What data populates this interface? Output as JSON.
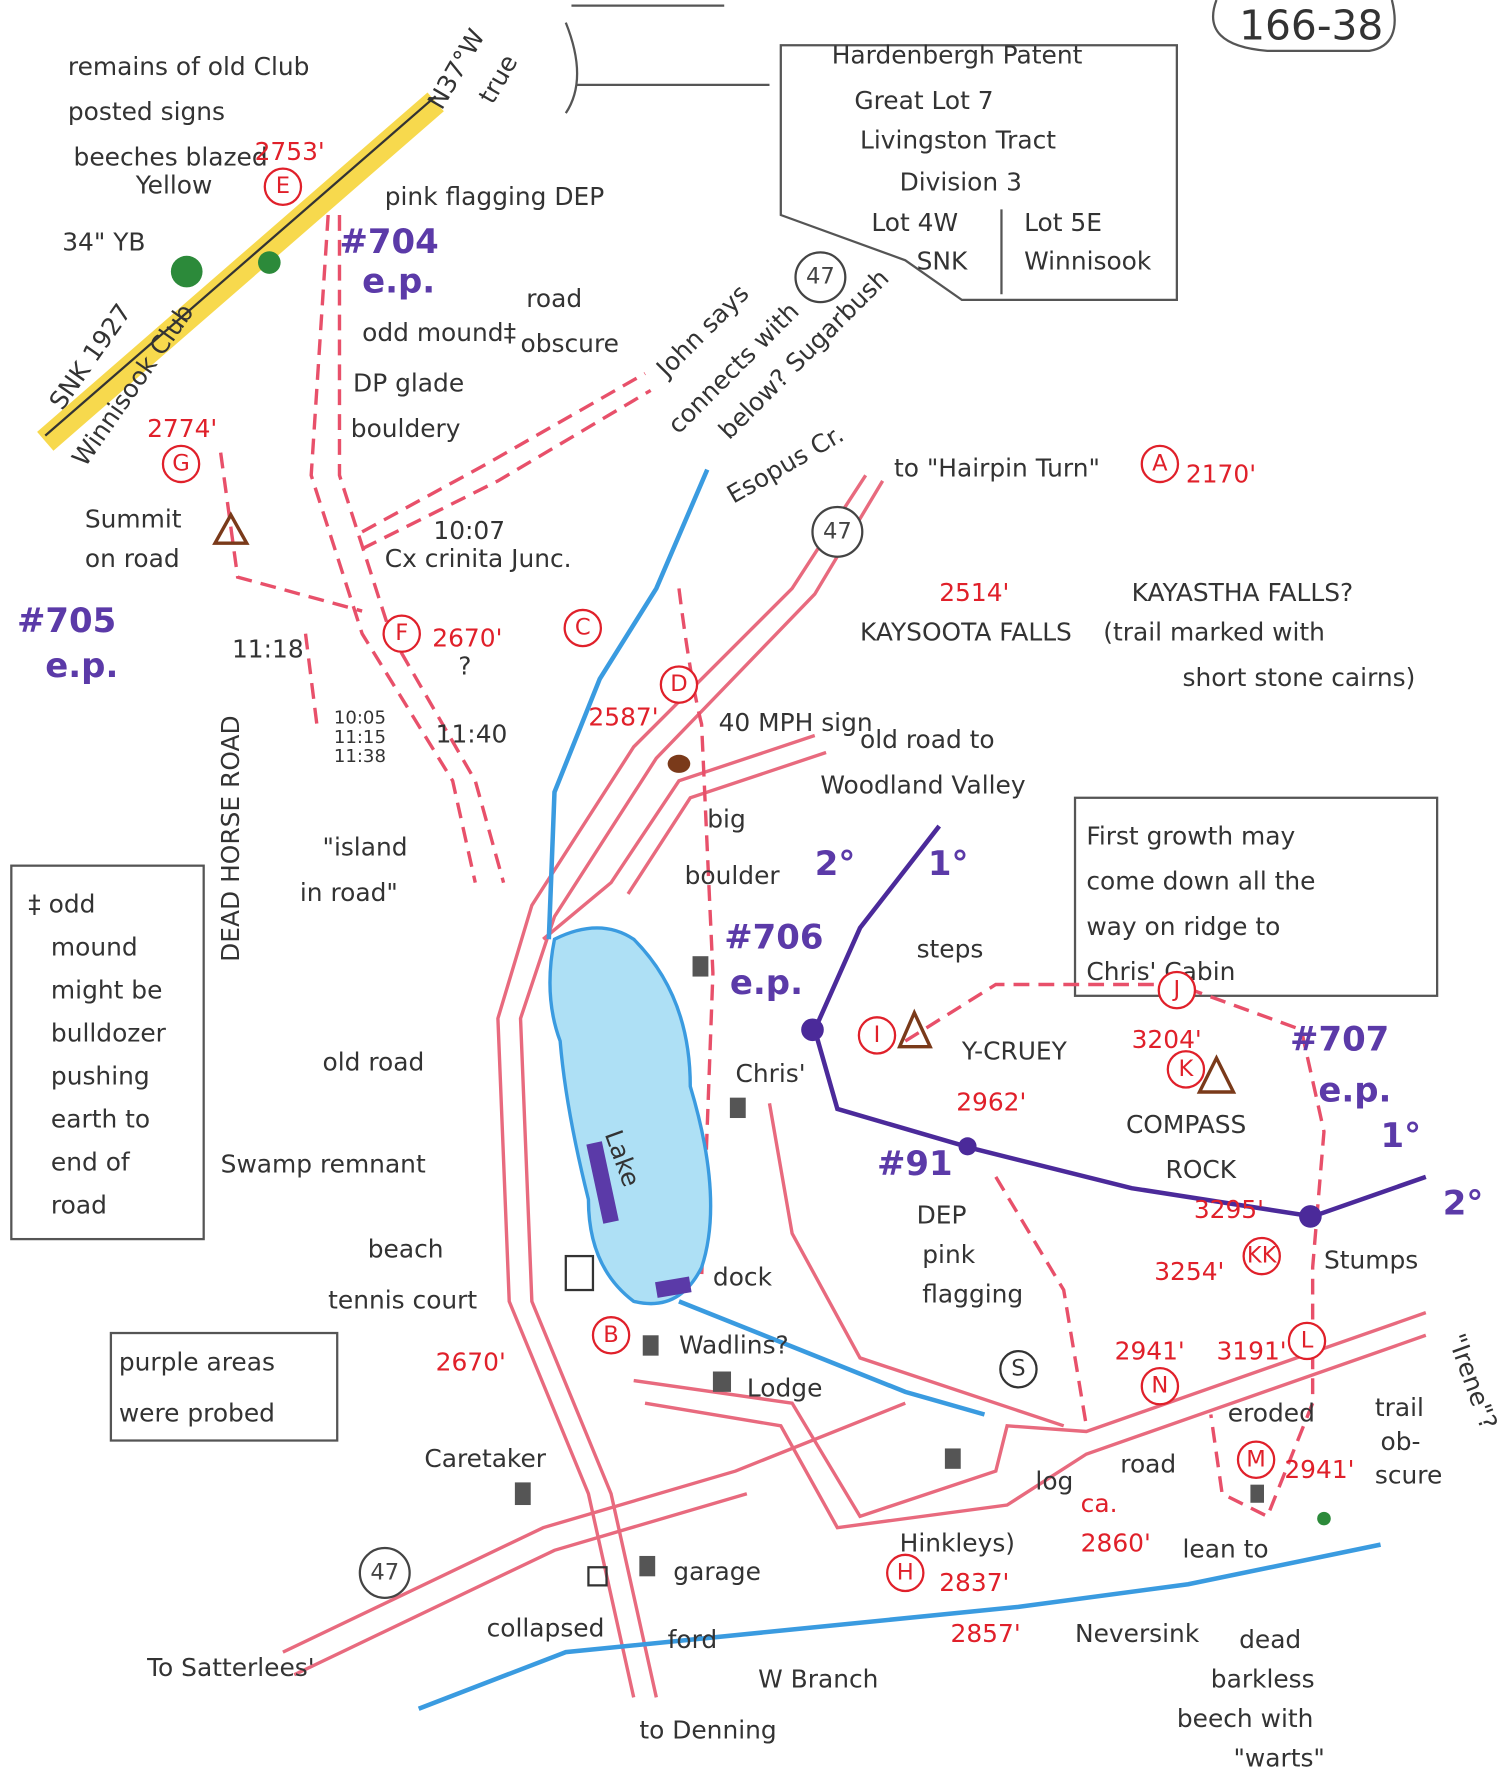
{
  "sheet_id": "166-38",
  "info_box": {
    "lines": [
      "Hardenbergh Patent",
      "Great Lot 7",
      "Livingston Tract",
      "Division 3"
    ],
    "lot_west": [
      "Lot 4W",
      "SNK"
    ],
    "lot_east": [
      "Lot 5E",
      "Winnisook"
    ]
  },
  "notes": {
    "mound_note": [
      "‡ odd",
      "mound",
      "might be",
      "bulldozer",
      "pushing",
      "earth to",
      "end of",
      "road"
    ],
    "purple_note": [
      "purple areas",
      "were probed"
    ],
    "growth_note": [
      "First growth may",
      "come down all the",
      "way on ridge to",
      "Chris' Cabin"
    ]
  },
  "labels": [
    "remains of old Club",
    "posted signs",
    "beeches blazed",
    "Yellow",
    "pink flagging DEP",
    "N37°W",
    "true",
    "34\" YB",
    "road",
    "obscure",
    "odd mound‡",
    "DP glade",
    "bouldery",
    "SNK 1927",
    "Winnisook Club",
    "John says",
    "connects with",
    "below? Sugarbush",
    "Summit",
    "on road",
    "10:07",
    "Cx crinita Junc.",
    "Esopus Cr.",
    "to \"Hairpin Turn\"",
    "KAYASTHA FALLS?",
    "(trail marked with",
    "short stone cairns)",
    "KAYSOOTA FALLS",
    "11:18",
    "?",
    "10:05",
    "11:15",
    "11:38",
    "11:40",
    "40 MPH sign",
    "old road to",
    "Woodland Valley",
    "big",
    "boulder",
    "DEAD HORSE ROAD",
    "\"island",
    "in road\"",
    "steps",
    "old road",
    "Lake",
    "Chris'",
    "Y-CRUEY",
    "COMPASS",
    "ROCK",
    "Swamp remnant",
    "DEP",
    "pink",
    "flagging",
    "Stumps",
    "beach",
    "tennis court",
    "dock",
    "Wadlins?",
    "Lodge",
    "eroded",
    "\"Irene\"?",
    "trail",
    "ob-",
    "scure",
    "Caretaker",
    "log",
    "road",
    "Hinkleys)",
    "lean to",
    "garage",
    "collapsed",
    "ford",
    "Neversink",
    "dead",
    "barkless",
    "beech with",
    "\"warts\"",
    "To Satterlees'",
    "W Branch",
    "to Denning"
  ],
  "elevations": [
    "2753'",
    "2774'",
    "2170'",
    "2514'",
    "2670'",
    "2587'",
    "2962'",
    "3204'",
    "3295'",
    "3254'",
    "2670'",
    "2941'",
    "3191'",
    "2941'",
    "ca.",
    "2860'",
    "2837'",
    "2857'"
  ],
  "waypoints": [
    "E",
    "G",
    "A",
    "C",
    "F",
    "D",
    "I",
    "J",
    "K",
    "KK",
    "B",
    "L",
    "N",
    "M",
    "H",
    "S"
  ],
  "route_numbers": [
    "47",
    "47",
    "47"
  ],
  "endpoints": [
    "#704",
    "e.p.",
    "#705",
    "e.p.",
    "#706",
    "e.p.",
    "#707",
    "e.p.",
    "#91",
    "2°",
    "1°",
    "1°",
    "2°"
  ]
}
